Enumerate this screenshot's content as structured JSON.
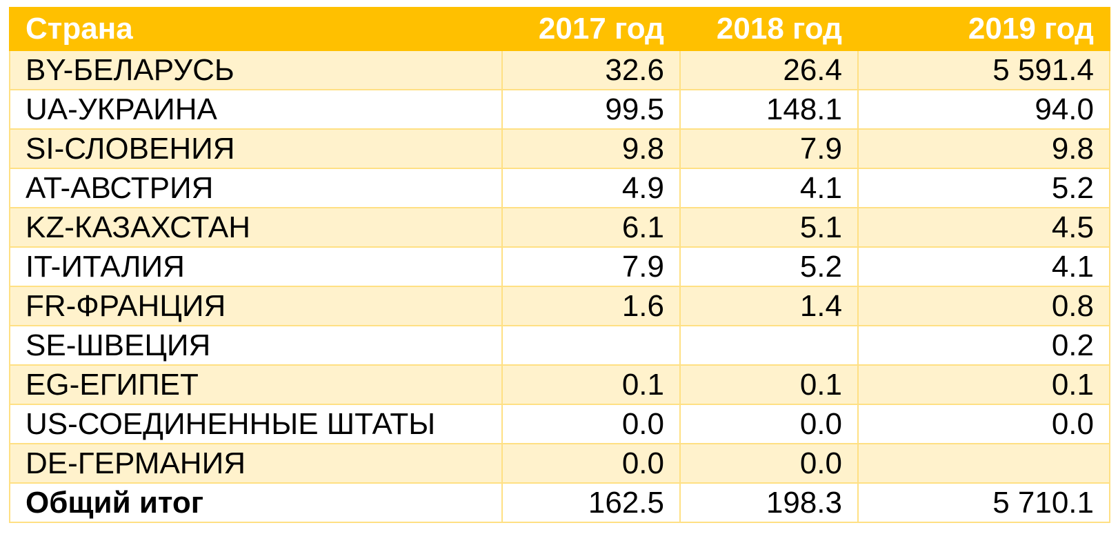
{
  "table": {
    "header": {
      "country": "Страна",
      "y2017": "2017 год",
      "y2018": "2018 год",
      "y2019": "2019 год"
    },
    "rows": [
      {
        "country": "BY-БЕЛАРУСЬ",
        "y2017": "32.6",
        "y2018": "26.4",
        "y2019": "5 591.4"
      },
      {
        "country": "UA-УКРАИНА",
        "y2017": "99.5",
        "y2018": "148.1",
        "y2019": "94.0"
      },
      {
        "country": "SI-СЛОВЕНИЯ",
        "y2017": "9.8",
        "y2018": "7.9",
        "y2019": "9.8"
      },
      {
        "country": "AT-АВСТРИЯ",
        "y2017": "4.9",
        "y2018": "4.1",
        "y2019": "5.2"
      },
      {
        "country": "KZ-КАЗАХСТАН",
        "y2017": "6.1",
        "y2018": "5.1",
        "y2019": "4.5"
      },
      {
        "country": "IT-ИТАЛИЯ",
        "y2017": "7.9",
        "y2018": "5.2",
        "y2019": "4.1"
      },
      {
        "country": "FR-ФРАНЦИЯ",
        "y2017": "1.6",
        "y2018": "1.4",
        "y2019": "0.8"
      },
      {
        "country": "SE-ШВЕЦИЯ",
        "y2017": "",
        "y2018": "",
        "y2019": "0.2"
      },
      {
        "country": "EG-ЕГИПЕТ",
        "y2017": "0.1",
        "y2018": "0.1",
        "y2019": "0.1"
      },
      {
        "country": "US-СОЕДИНЕННЫЕ ШТАТЫ",
        "y2017": "0.0",
        "y2018": "0.0",
        "y2019": "0.0"
      },
      {
        "country": "DE-ГЕРМАНИЯ",
        "y2017": "0.0",
        "y2018": "0.0",
        "y2019": ""
      }
    ],
    "total": {
      "country": "Общий итог",
      "y2017": "162.5",
      "y2018": "198.3",
      "y2019": "5 710.1"
    }
  },
  "colors": {
    "header_bg": "#ffc000",
    "header_text": "#ffffff",
    "band_row_bg": "#fff2cc",
    "border": "#ffe083"
  }
}
